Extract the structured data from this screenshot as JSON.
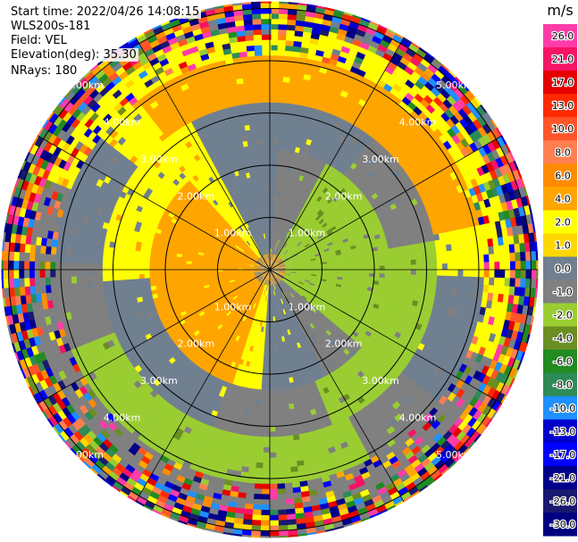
{
  "header": {
    "start_time": "Start time: 2022/04/26 14:08:15",
    "instrument": "WLS200s-181",
    "field": "Field: VEL",
    "elevation": "Elevation(deg): 35.30",
    "nrays": "NRays: 180"
  },
  "chart_data": {
    "type": "heatmap",
    "projection": "polar-ppi",
    "field": "VEL",
    "units": "m/s",
    "nrays": 180,
    "elevation_deg": 35.3,
    "range_rings_km": [
      1,
      2,
      3,
      4,
      5
    ],
    "range_ring_labels": [
      "1.00km",
      "2.00km",
      "3.00km",
      "4.00km",
      "5.00km"
    ],
    "spokes_deg": [
      0,
      30,
      60,
      90,
      120,
      150,
      180,
      210,
      240,
      270,
      300,
      330
    ],
    "approx_pattern_ms": [
      {
        "range_km": [
          0.2,
          2.3
        ],
        "upwind_sector": "west",
        "value_upwind": 3.0,
        "value_downwind": -3.0
      },
      {
        "range_km": [
          2.3,
          3.2
        ],
        "upwind_sector": "west-north",
        "value_upwind": 1.0,
        "value_downwind": -1.5
      },
      {
        "range_km": [
          3.2,
          4.1
        ],
        "upwind_sector": "north",
        "value_upwind": 3.0,
        "value_downwind": -3.0
      },
      {
        "range_km": [
          4.1,
          6.4
        ],
        "note": "noise / random values"
      }
    ],
    "colorbar": {
      "label": "m/s",
      "ticks": [
        "26.0",
        "21.0",
        "17.0",
        "13.0",
        "10.0",
        "8.0",
        "6.0",
        "4.0",
        "2.0",
        "1.0",
        "0.0",
        "-1.0",
        "-2.0",
        "-4.0",
        "-6.0",
        "-8.0",
        "-10.0",
        "-13.0",
        "-17.0",
        "-21.0",
        "-26.0",
        "-30.0"
      ],
      "colors": [
        "#ff3ca8",
        "#f51466",
        "#e60000",
        "#ff2a00",
        "#ff5528",
        "#ff7f50",
        "#ff8c00",
        "#ffa500",
        "#ffff00",
        "#ffd700",
        "#708090",
        "#808080",
        "#9acd32",
        "#6b8e23",
        "#228b22",
        "#2e8b57",
        "#1e90ff",
        "#0000cd",
        "#0000ff",
        "#00008b",
        "#191970",
        "#000080"
      ]
    }
  }
}
